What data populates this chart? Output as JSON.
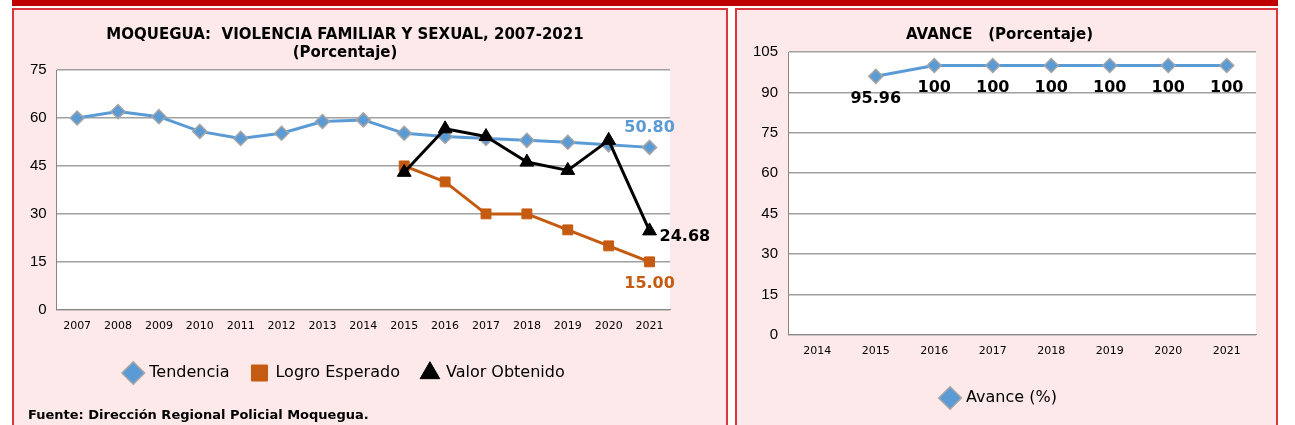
{
  "chart_data": [
    {
      "type": "line",
      "title": [
        "MOQUEGUA:  VIOLENCIA FAMILIAR Y SEXUAL, 2007-2021",
        "(Porcentaje)"
      ],
      "categories": [
        "2007",
        "2008",
        "2009",
        "2010",
        "2011",
        "2012",
        "2013",
        "2014",
        "2015",
        "2016",
        "2017",
        "2018",
        "2019",
        "2020",
        "2021"
      ],
      "series": [
        {
          "name": "Tendencia",
          "color": "#5b9bd5",
          "marker": "diamond",
          "values": [
            60,
            62,
            60.4,
            55.8,
            53.6,
            55.2,
            58.9,
            59.4,
            55.2,
            54.2,
            53.6,
            53,
            52.4,
            51.6,
            50.8
          ],
          "value_labels": [
            null,
            null,
            null,
            null,
            null,
            null,
            null,
            null,
            null,
            null,
            null,
            null,
            null,
            null,
            "50.80"
          ]
        },
        {
          "name": "Logro Esperado",
          "color": "#c55a11",
          "marker": "square",
          "values": [
            null,
            null,
            null,
            null,
            null,
            null,
            null,
            null,
            45,
            40,
            30,
            30,
            25,
            20,
            15
          ],
          "value_labels": [
            null,
            null,
            null,
            null,
            null,
            null,
            null,
            null,
            null,
            null,
            null,
            null,
            null,
            null,
            "15.00"
          ]
        },
        {
          "name": "Valor Obtenido",
          "color": "#000000",
          "marker": "triangle",
          "values": [
            null,
            null,
            null,
            null,
            null,
            null,
            null,
            null,
            43,
            56.6,
            54.2,
            46.2,
            43.6,
            53,
            24.68
          ],
          "value_labels": [
            null,
            null,
            null,
            null,
            null,
            null,
            null,
            null,
            null,
            null,
            null,
            null,
            null,
            null,
            "24.68"
          ]
        }
      ],
      "ylim": [
        0,
        75
      ],
      "yticks": [
        0,
        15,
        30,
        45,
        60,
        75
      ],
      "grid": "y",
      "legend": "bottom",
      "annotations": [
        "Fuente: Dirección Regional Policial Moquegua."
      ]
    },
    {
      "type": "line",
      "title": "AVANCE   (Porcentaje)",
      "categories": [
        "2014",
        "2015",
        "2016",
        "2017",
        "2018",
        "2019",
        "2020",
        "2021"
      ],
      "series": [
        {
          "name": "Avance (%)",
          "color": "#5b9bd5",
          "marker": "diamond",
          "values": [
            null,
            95.96,
            100,
            100,
            100,
            100,
            100,
            100
          ]
        }
      ],
      "ylim": [
        0,
        105
      ],
      "yticks": [
        0,
        15,
        30,
        45,
        60,
        75,
        90,
        105
      ],
      "grid": "y",
      "legend": "bottom",
      "data_labels": true
    }
  ]
}
